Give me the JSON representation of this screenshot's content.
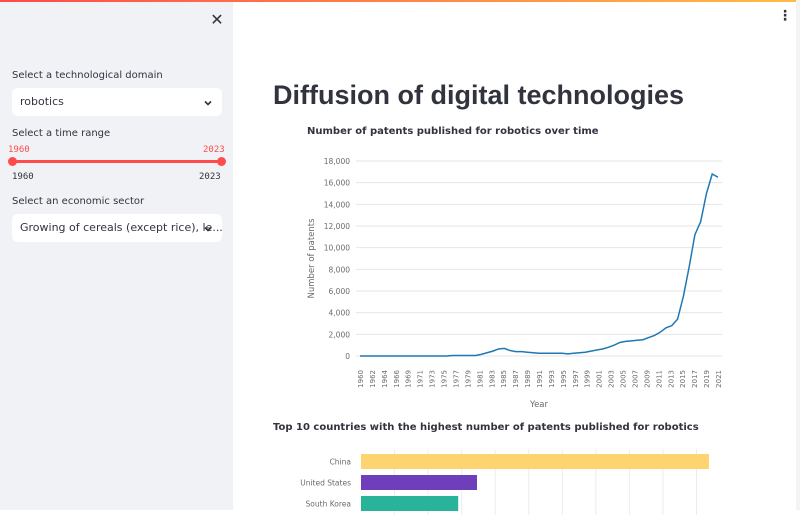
{
  "sidebar": {
    "domain_label": "Select a technological domain",
    "domain_value": "robotics",
    "time_label": "Select a time range",
    "time_start": "1960",
    "time_end": "2023",
    "time_min": "1960",
    "time_max": "2023",
    "sector_label": "Select an economic sector",
    "sector_value": "Growing of cereals (except rice), le..."
  },
  "main": {
    "title": "Diffusion of digital technologies"
  },
  "chart_data": [
    {
      "type": "line",
      "title": "Number of patents published for robotics over time",
      "xlabel": "Year",
      "ylabel": "Number of patents",
      "ylim": [
        0,
        18000
      ],
      "yticks": [
        0,
        2000,
        4000,
        6000,
        8000,
        10000,
        12000,
        14000,
        16000,
        18000
      ],
      "ytick_labels": [
        "0",
        "2,000",
        "4,000",
        "6,000",
        "8,000",
        "10,000",
        "12,000",
        "14,000",
        "16,000",
        "18,000"
      ],
      "xtick_labels": [
        "1960",
        "1962",
        "1964",
        "1966",
        "1969",
        "1971",
        "1973",
        "1975",
        "1977",
        "1979",
        "1981",
        "1983",
        "1985",
        "1987",
        "1989",
        "1991",
        "1993",
        "1995",
        "1997",
        "1999",
        "2001",
        "2003",
        "2005",
        "2007",
        "2009",
        "2011",
        "2013",
        "2015",
        "2017",
        "2019",
        "2021"
      ],
      "color": "#1f77b4",
      "x": [
        1960,
        1961,
        1962,
        1963,
        1964,
        1965,
        1966,
        1967,
        1968,
        1969,
        1970,
        1971,
        1972,
        1973,
        1974,
        1975,
        1976,
        1977,
        1978,
        1979,
        1980,
        1981,
        1982,
        1983,
        1984,
        1985,
        1986,
        1987,
        1988,
        1989,
        1990,
        1991,
        1992,
        1993,
        1994,
        1995,
        1996,
        1997,
        1998,
        1999,
        2000,
        2001,
        2002,
        2003,
        2004,
        2005,
        2006,
        2007,
        2008,
        2009,
        2010,
        2011,
        2012,
        2013,
        2014,
        2015,
        2016,
        2017,
        2018,
        2019,
        2020,
        2021,
        2022
      ],
      "y": [
        0,
        0,
        0,
        0,
        0,
        0,
        0,
        0,
        0,
        0,
        0,
        0,
        0,
        0,
        0,
        0,
        50,
        50,
        50,
        50,
        50,
        150,
        300,
        450,
        650,
        700,
        500,
        400,
        400,
        350,
        300,
        250,
        250,
        250,
        250,
        250,
        200,
        250,
        300,
        350,
        450,
        550,
        650,
        800,
        1000,
        1250,
        1350,
        1400,
        1450,
        1500,
        1700,
        1900,
        2200,
        2600,
        2800,
        3400,
        5500,
        8200,
        11200,
        12400,
        15000,
        16800,
        16500
      ]
    },
    {
      "type": "bar",
      "orientation": "horizontal",
      "title": "Top 10 countries with the highest number of patents published for robotics",
      "categories": [
        "China",
        "United States",
        "South Korea"
      ],
      "values": [
        31500,
        10500,
        8800
      ],
      "colors": [
        "#fdd46f",
        "#6f3fbb",
        "#2ab39b"
      ]
    }
  ]
}
